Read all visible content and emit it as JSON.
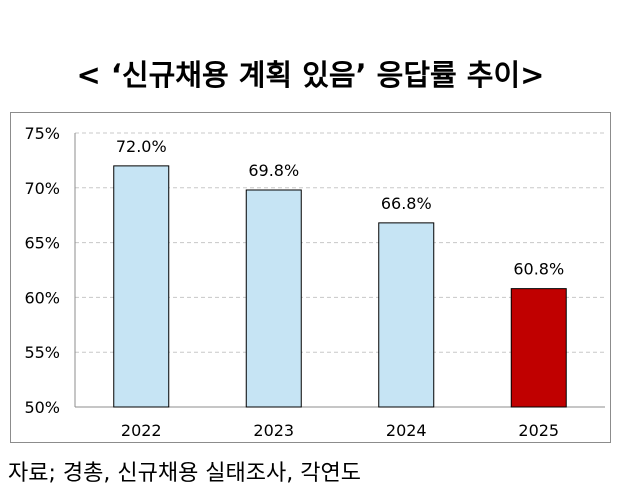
{
  "chart_data": {
    "type": "bar",
    "title": "< ‘신규채용 계획 있음’ 응답률 추이>",
    "categories": [
      "2022",
      "2023",
      "2024",
      "2025"
    ],
    "values": [
      72.0,
      69.8,
      66.8,
      60.8
    ],
    "data_labels": [
      "72.0%",
      "69.8%",
      "66.8%",
      "60.8%"
    ],
    "ylim": [
      50,
      75
    ],
    "yticks": [
      50,
      55,
      60,
      65,
      70,
      75
    ],
    "ytick_labels": [
      "50%",
      "55%",
      "60%",
      "65%",
      "70%",
      "75%"
    ],
    "xlabel": "",
    "ylabel": "",
    "grid": "dashed horizontal",
    "bar_colors": [
      "#c6e4f4",
      "#c6e4f4",
      "#c6e4f4",
      "#c00000"
    ],
    "bar_edge_color": "#000000"
  },
  "source": "자료; 경총, 신규채용 실태조사, 각연도"
}
